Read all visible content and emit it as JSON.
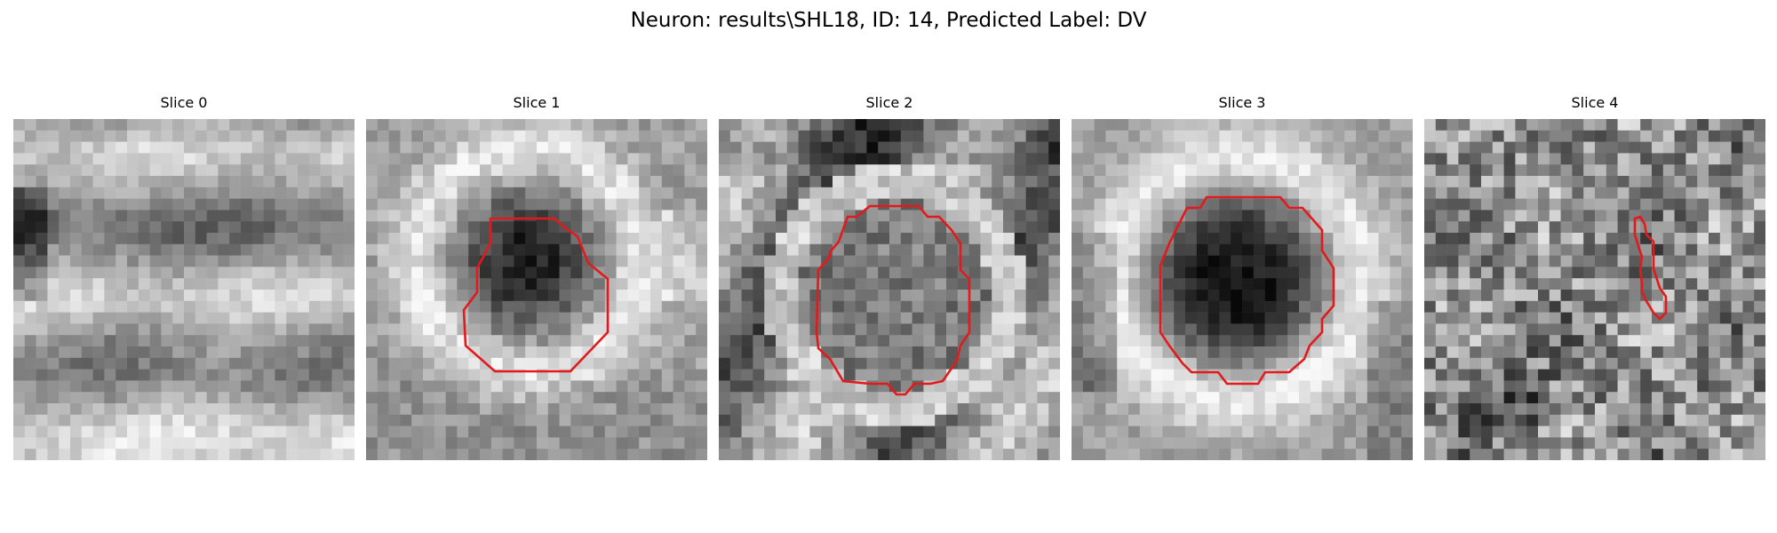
{
  "figure": {
    "title": "Neuron: results\\SHL18, ID: 14, Predicted Label: DV"
  },
  "panels": [
    {
      "title": "Slice 0",
      "contour_color": "#e31a1c",
      "has_contour": false
    },
    {
      "title": "Slice 1",
      "contour_color": "#e31a1c",
      "has_contour": true
    },
    {
      "title": "Slice 2",
      "contour_color": "#e31a1c",
      "has_contour": true
    },
    {
      "title": "Slice 3",
      "contour_color": "#e31a1c",
      "has_contour": true
    },
    {
      "title": "Slice 4",
      "contour_color": "#e31a1c",
      "has_contour": true
    }
  ],
  "colormap": "gray"
}
